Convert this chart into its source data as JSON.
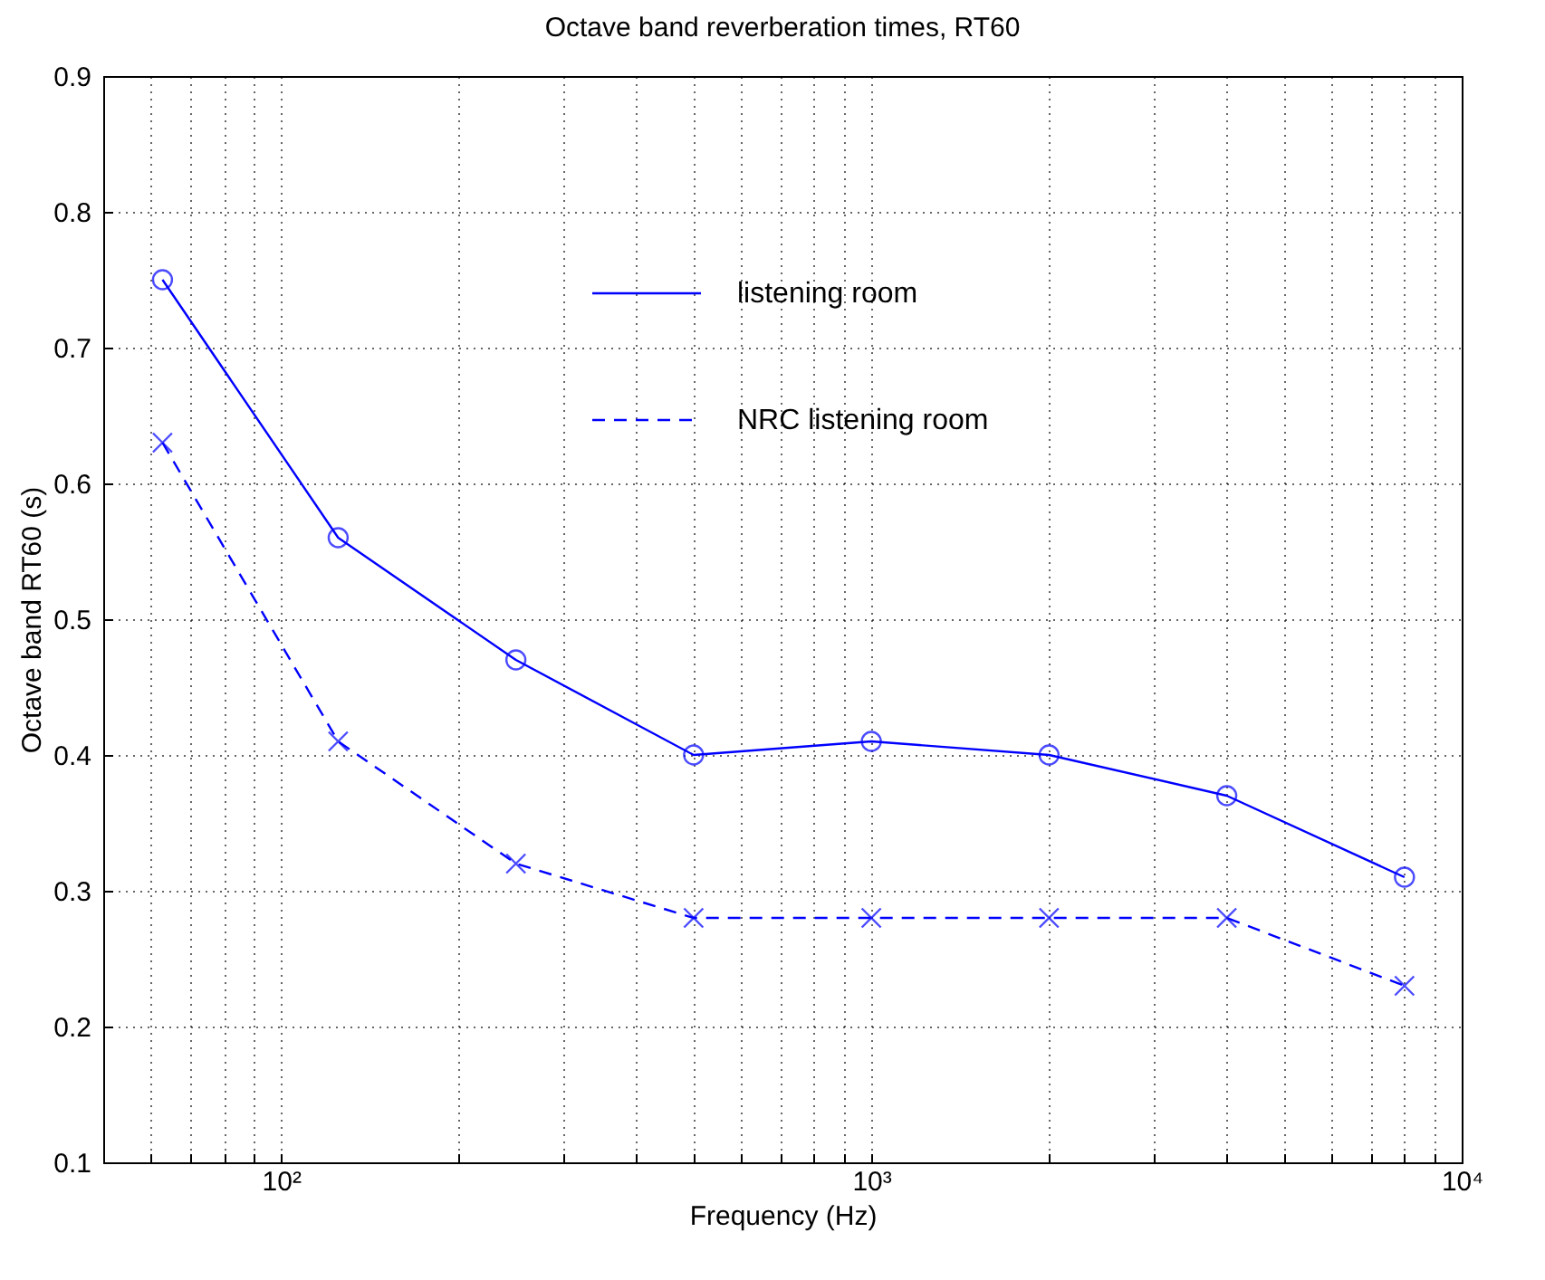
{
  "chart_data": {
    "type": "line",
    "title": "Octave band reverberation times, RT60",
    "xlabel": "Frequency (Hz)",
    "ylabel": "Octave band RT60 (s)",
    "x": [
      63,
      125,
      250,
      500,
      1000,
      2000,
      4000,
      8000
    ],
    "series": [
      {
        "name": "listening room",
        "color": "#0000ff",
        "marker": "circle",
        "line_style": "solid",
        "values": [
          0.75,
          0.56,
          0.47,
          0.4,
          0.41,
          0.4,
          0.37,
          0.31
        ]
      },
      {
        "name": "NRC listening room",
        "color": "#0000ff",
        "marker": "cross",
        "line_style": "dashed",
        "values": [
          0.63,
          0.41,
          0.32,
          0.28,
          0.28,
          0.28,
          0.28,
          0.23
        ]
      }
    ],
    "log": "x",
    "xlim": [
      50,
      10000
    ],
    "xticks": [
      {
        "value": 60,
        "label": null
      },
      {
        "value": 70,
        "label": null
      },
      {
        "value": 80,
        "label": null
      },
      {
        "value": 90,
        "label": null
      },
      {
        "value": 100,
        "label": "10²"
      },
      {
        "value": 200,
        "label": null
      },
      {
        "value": 300,
        "label": null
      },
      {
        "value": 400,
        "label": null
      },
      {
        "value": 500,
        "label": null
      },
      {
        "value": 600,
        "label": null
      },
      {
        "value": 700,
        "label": null
      },
      {
        "value": 800,
        "label": null
      },
      {
        "value": 900,
        "label": null
      },
      {
        "value": 1000,
        "label": "10³"
      },
      {
        "value": 2000,
        "label": null
      },
      {
        "value": 3000,
        "label": null
      },
      {
        "value": 4000,
        "label": null
      },
      {
        "value": 5000,
        "label": null
      },
      {
        "value": 6000,
        "label": null
      },
      {
        "value": 7000,
        "label": null
      },
      {
        "value": 8000,
        "label": null
      },
      {
        "value": 9000,
        "label": null
      },
      {
        "value": 10000,
        "label": "10⁴"
      }
    ],
    "ylim": [
      0.1,
      0.9
    ],
    "yticks": [
      0.1,
      0.2,
      0.3,
      0.4,
      0.5,
      0.6,
      0.7,
      0.8,
      0.9
    ],
    "grid": true,
    "legend": "top"
  }
}
